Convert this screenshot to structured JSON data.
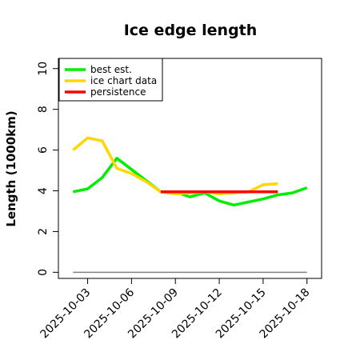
{
  "chart_data": {
    "type": "line",
    "title": "Ice edge length",
    "xlabel": "",
    "ylabel": "Length (1000km)",
    "x_ticks": [
      "2025-10-03",
      "2025-10-06",
      "2025-10-09",
      "2025-10-12",
      "2025-10-15",
      "2025-10-18"
    ],
    "y_ticks": [
      "0",
      "2",
      "4",
      "6",
      "8",
      "10"
    ],
    "xlim": [
      "2025-10-01",
      "2025-10-19"
    ],
    "ylim": [
      -0.3,
      10.5
    ],
    "grid": false,
    "legend_position": "top-left",
    "reference_line": {
      "y": 0,
      "x_start": "2025-10-02",
      "x_end": "2025-10-18",
      "color": "#808080"
    },
    "series": [
      {
        "name": "best est.",
        "color": "#00ee00",
        "x": [
          "2025-10-02",
          "2025-10-03",
          "2025-10-04",
          "2025-10-05",
          "2025-10-06",
          "2025-10-07",
          "2025-10-08",
          "2025-10-09",
          "2025-10-10",
          "2025-10-11",
          "2025-10-12",
          "2025-10-13",
          "2025-10-14",
          "2025-10-15",
          "2025-10-16",
          "2025-10-17",
          "2025-10-18"
        ],
        "values": [
          3.95,
          4.1,
          4.65,
          5.6,
          5.05,
          4.5,
          3.95,
          3.95,
          3.7,
          3.9,
          3.5,
          3.3,
          3.45,
          3.6,
          3.8,
          3.9,
          4.15
        ]
      },
      {
        "name": "ice chart data",
        "color": "#ffd700",
        "x": [
          "2025-10-02",
          "2025-10-03",
          "2025-10-04",
          "2025-10-05",
          "2025-10-06",
          "2025-10-07",
          "2025-10-08",
          "2025-10-09",
          "2025-10-10",
          "2025-10-11",
          "2025-10-12",
          "2025-10-13",
          "2025-10-14",
          "2025-10-15",
          "2025-10-16"
        ],
        "values": [
          6.0,
          6.6,
          6.45,
          5.1,
          4.85,
          4.45,
          3.95,
          3.85,
          3.9,
          3.95,
          3.85,
          3.9,
          3.95,
          4.3,
          4.35
        ]
      },
      {
        "name": "persistence",
        "color": "#ff0000",
        "x": [
          "2025-10-08",
          "2025-10-16"
        ],
        "values": [
          3.95,
          3.95
        ]
      }
    ]
  }
}
